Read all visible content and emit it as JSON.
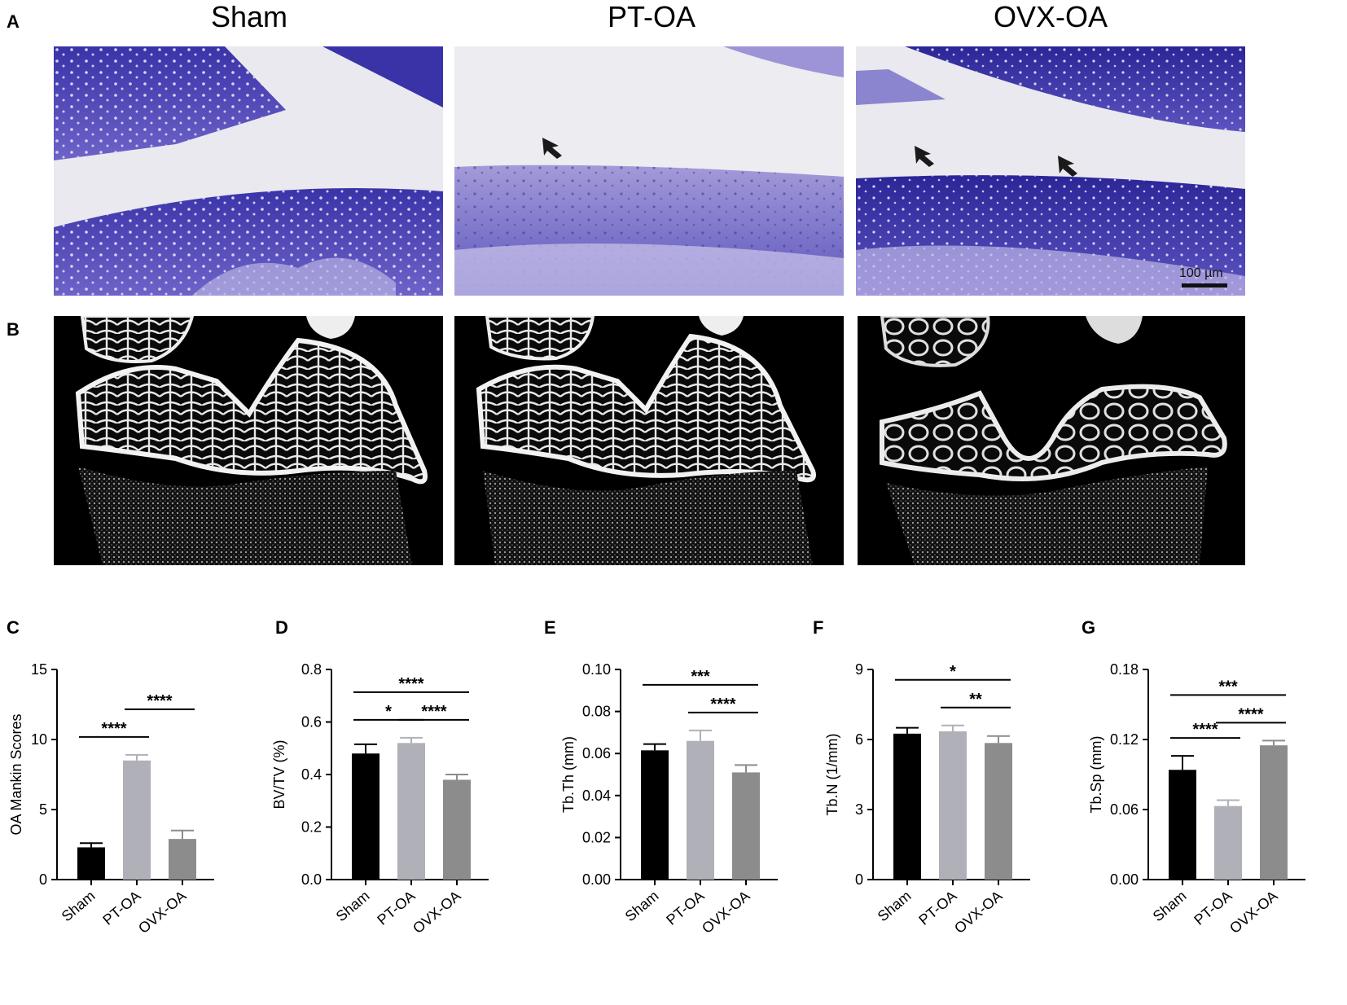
{
  "panels_top": {
    "letter_a": "A",
    "letter_b": "B",
    "columns": [
      "Sham",
      "PT-OA",
      "OVX-OA"
    ],
    "scale_bar_label": "100 µm"
  },
  "colors": {
    "sham_bar": "#000000",
    "ptoa_bar": "#b0b0b8",
    "ovxoa_bar": "#8c8c8c",
    "stain_dark": "#2e2a9a",
    "stain_light": "#8f86d6",
    "background_slide": "#e9e9ef"
  },
  "chart_data": [
    {
      "letter": "C",
      "type": "bar",
      "categories": [
        "Sham",
        "PT-OA",
        "OVX-OA"
      ],
      "values": [
        2.3,
        8.5,
        2.9
      ],
      "errors": [
        0.3,
        0.4,
        0.6
      ],
      "ylabel": "OA Mankin Scores",
      "ylim": [
        0,
        15
      ],
      "yticks": [
        "0",
        "5",
        "10",
        "15"
      ],
      "significance": [
        {
          "from": 0,
          "to": 1,
          "label": "****",
          "level": 0
        },
        {
          "from": 1,
          "to": 2,
          "label": "****",
          "level": 1
        }
      ]
    },
    {
      "letter": "D",
      "type": "bar",
      "categories": [
        "Sham",
        "PT-OA",
        "OVX-OA"
      ],
      "values": [
        0.48,
        0.52,
        0.38
      ],
      "errors": [
        0.035,
        0.02,
        0.02
      ],
      "ylabel": "BV/TV (%)",
      "ylim": [
        0,
        0.8
      ],
      "yticks": [
        "0.0",
        "0.2",
        "0.4",
        "0.6",
        "0.8"
      ],
      "significance": [
        {
          "from": 0,
          "to": 1,
          "label": "*",
          "level": 0
        },
        {
          "from": 1,
          "to": 2,
          "label": "****",
          "level": 0
        },
        {
          "from": 0,
          "to": 2,
          "label": "****",
          "level": 1
        }
      ]
    },
    {
      "letter": "E",
      "type": "bar",
      "categories": [
        "Sham",
        "PT-OA",
        "OVX-OA"
      ],
      "values": [
        0.0615,
        0.066,
        0.051
      ],
      "errors": [
        0.003,
        0.005,
        0.0035
      ],
      "ylabel": "Tb.Th (mm)",
      "ylim": [
        0,
        0.1
      ],
      "yticks": [
        "0.00",
        "0.02",
        "0.04",
        "0.06",
        "0.08",
        "0.10"
      ],
      "significance": [
        {
          "from": 1,
          "to": 2,
          "label": "****",
          "level": 0
        },
        {
          "from": 0,
          "to": 2,
          "label": "***",
          "level": 1
        }
      ]
    },
    {
      "letter": "F",
      "type": "bar",
      "categories": [
        "Sham",
        "PT-OA",
        "OVX-OA"
      ],
      "values": [
        6.25,
        6.35,
        5.85
      ],
      "errors": [
        0.25,
        0.25,
        0.3
      ],
      "ylabel": "Tb.N (1/mm)",
      "ylim": [
        0,
        9
      ],
      "yticks": [
        "0",
        "3",
        "6",
        "9"
      ],
      "significance": [
        {
          "from": 1,
          "to": 2,
          "label": "**",
          "level": 0
        },
        {
          "from": 0,
          "to": 2,
          "label": "*",
          "level": 1
        }
      ]
    },
    {
      "letter": "G",
      "type": "bar",
      "categories": [
        "Sham",
        "PT-OA",
        "OVX-OA"
      ],
      "values": [
        0.094,
        0.063,
        0.115
      ],
      "errors": [
        0.012,
        0.005,
        0.004
      ],
      "ylabel": "Tb.Sp (mm)",
      "ylim": [
        0,
        0.18
      ],
      "yticks": [
        "0.00",
        "0.06",
        "0.12",
        "0.18"
      ],
      "significance": [
        {
          "from": 0,
          "to": 1,
          "label": "****",
          "level": 0
        },
        {
          "from": 1,
          "to": 2,
          "label": "****",
          "level": 0
        },
        {
          "from": 0,
          "to": 2,
          "label": "***",
          "level": 1
        }
      ]
    }
  ]
}
